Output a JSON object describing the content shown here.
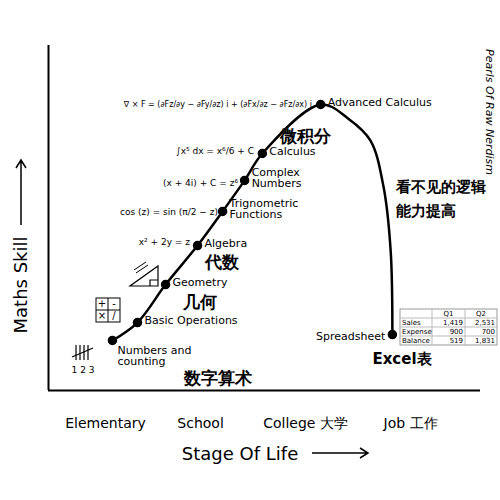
{
  "chart_data": {
    "type": "line",
    "x_label": "Stage Of Life",
    "y_label": "Maths Skill",
    "xlim": [
      0,
      100
    ],
    "ylim": [
      0,
      100
    ],
    "xticks": [
      {
        "value": 13.2,
        "label": "Elementary"
      },
      {
        "value": 35.2,
        "label": "School"
      },
      {
        "value": 59.5,
        "label": "College 大学"
      },
      {
        "value": 83.8,
        "label": "Job 工作"
      }
    ],
    "yticks": [],
    "tick_labels": "x",
    "grid": false,
    "x": [
      14.8,
      20.6,
      27.1,
      34.5,
      40.3,
      45.4,
      49.5,
      63.0,
      69.4,
      74.5,
      77.5,
      79.2,
      79.6
    ],
    "values": [
      14.5,
      19.7,
      30.7,
      42.0,
      51.9,
      60.9,
      68.7,
      82.9,
      78.8,
      72.5,
      59.4,
      40.6,
      16.2
    ],
    "labels": [
      "Numbers and\ncounting",
      "Basic Operations",
      "Geometry",
      "Algebra",
      "Trignometric\nFunctions",
      "Complex\nNumbers",
      "Calculus",
      "Advanced Calculus",
      null,
      null,
      null,
      null,
      "Spreadsheet"
    ],
    "color": "#000000",
    "marker": "circle",
    "line_style": "solid",
    "annotations": [
      "微积分",
      "代数",
      "几何",
      "数字算术",
      "看不见的逻辑\n能力提高",
      "Excel表"
    ],
    "formulas": [
      "∇ × F = (∂Fz/∂y − ∂Fy/∂z) i + (∂Fx/∂z − ∂Fz/∂x) j",
      "∫x⁵ dx = x⁶/6 + C",
      "(x + 4i) + C = z⁶",
      "cos (z) = sin (π/2 − z)",
      "x² + 2y = z"
    ],
    "tally_label": "1 2 3",
    "operations": [
      "+",
      "-",
      "×",
      "/"
    ],
    "table": {
      "columns": [
        "Q1",
        "Q2"
      ],
      "rows": [
        [
          "Sales",
          "1,419",
          "2,531"
        ],
        [
          "Expense",
          "900",
          "700"
        ],
        [
          "Balance",
          "519",
          "1,831"
        ]
      ]
    },
    "credit": "Pearls Of Raw Nerdism"
  }
}
